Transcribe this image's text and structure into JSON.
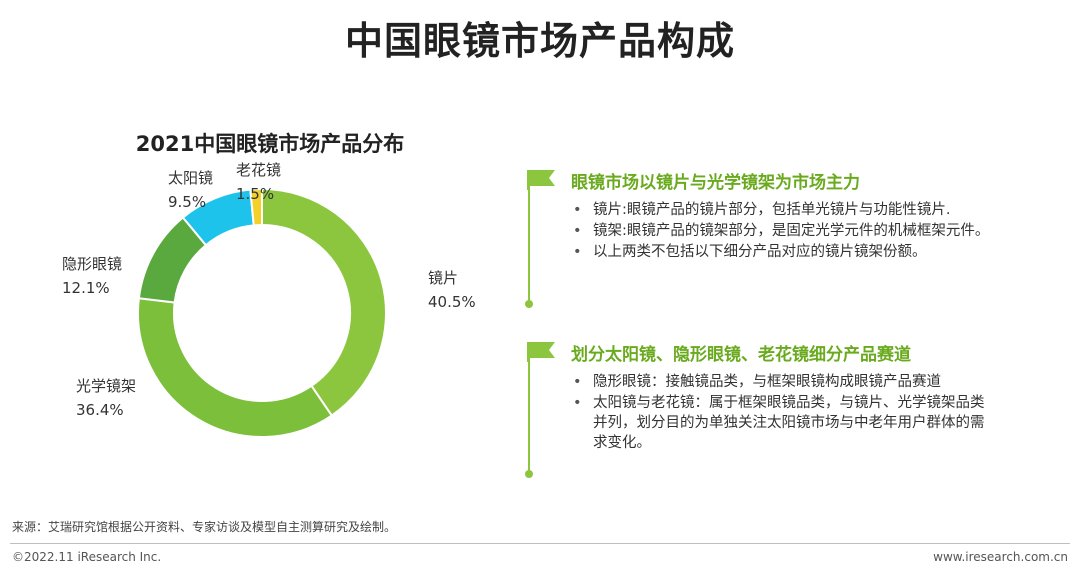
{
  "page": {
    "title": "中国眼镜市场产品构成"
  },
  "chart_data": {
    "type": "pie",
    "subtype": "donut",
    "title": "2021中国眼镜市场产品分布",
    "unit": "%",
    "slices": [
      {
        "name": "镜片",
        "value": 40.5,
        "label": "40.5%",
        "color": "#8cc63f"
      },
      {
        "name": "光学镜架",
        "value": 36.4,
        "label": "36.4%",
        "color": "#7bbf3a"
      },
      {
        "name": "隐形眼镜",
        "value": 12.1,
        "label": "12.1%",
        "color": "#5aa93f"
      },
      {
        "name": "太阳镜",
        "value": 9.5,
        "label": "9.5%",
        "color": "#1ec3ec"
      },
      {
        "name": "老花镜",
        "value": 1.5,
        "label": "1.5%",
        "color": "#f3d12a"
      }
    ]
  },
  "panel": {
    "sections": [
      {
        "heading": "眼镜市场以镜片与光学镜架为市场主力",
        "bullets": [
          "镜片:眼镜产品的镜片部分，包括单光镜片与功能性镜片.",
          "镜架:眼镜产品的镜架部分，是固定光学元件的机械框架元件。",
          "以上两类不包括以下细分产品对应的镜片镜架份额。"
        ]
      },
      {
        "heading": "划分太阳镜、隐形眼镜、老花镜细分产品赛道",
        "bullets": [
          "隐形眼镜：接触镜品类，与框架眼镜构成眼镜产品赛道",
          "太阳镜与老花镜：属于框架眼镜品类，与镜片、光学镜架品类并列，划分目的为单独关注太阳镜市场与中老年用户群体的需求变化。"
        ]
      }
    ]
  },
  "footer": {
    "source": "来源：艾瑞研究馆根据公开资料、专家访谈及模型自主测算研究及绘制。",
    "copyright": "©2022.11 iResearch Inc.",
    "website": "www.iresearch.com.cn"
  },
  "colors": {
    "accent_green": "#8cc63f",
    "heading_green": "#6aaa1f",
    "cyan": "#1ec3ec",
    "yellow": "#f3d12a"
  }
}
